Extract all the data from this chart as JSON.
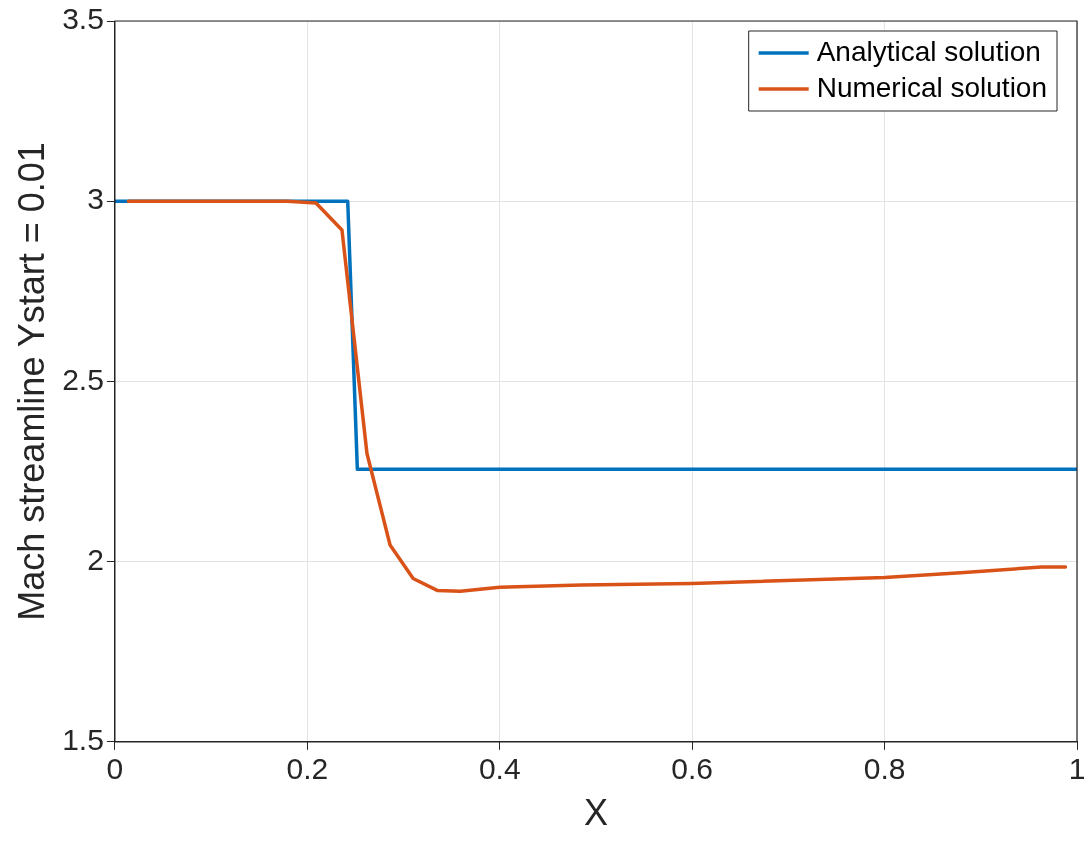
{
  "chart_data": {
    "type": "line",
    "xlabel": "X",
    "ylabel": "Mach streamline Ystart = 0.01",
    "xlim": [
      0,
      1
    ],
    "ylim": [
      1.5,
      3.5
    ],
    "xticks": [
      0,
      0.2,
      0.4,
      0.6,
      0.8,
      1
    ],
    "yticks": [
      1.5,
      2,
      2.5,
      3,
      3.5
    ],
    "grid": true,
    "legend": "top right",
    "line_style": "solid",
    "marker": "none",
    "series": [
      {
        "name": "Analytical solution",
        "color": "#0072bd",
        "x": [
          0,
          0.242,
          0.252,
          1
        ],
        "values": [
          3,
          3,
          2.256,
          2.256
        ]
      },
      {
        "name": "Numerical solution",
        "color": "#d95319",
        "x": [
          0.014,
          0.179,
          0.209,
          0.236,
          0.262,
          0.286,
          0.31,
          0.335,
          0.359,
          0.4,
          0.485,
          0.6,
          0.8,
          0.879,
          0.963,
          0.988
        ],
        "values": [
          3,
          3,
          2.995,
          2.92,
          2.3,
          2.046,
          1.953,
          1.92,
          1.918,
          1.929,
          1.935,
          1.939,
          1.956,
          1.969,
          1.985,
          1.985
        ]
      }
    ]
  }
}
